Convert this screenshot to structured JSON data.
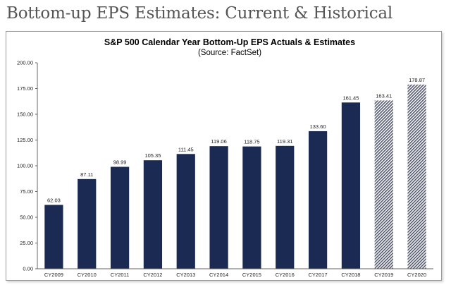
{
  "page": {
    "title": "Bottom-up EPS Estimates: Current & Historical"
  },
  "colors": {
    "actual_bar": "#1b2a52",
    "estimate_hatch_dark": "#555a6e",
    "estimate_hatch_light": "#ffffff",
    "axis": "#666666"
  },
  "chart_data": {
    "type": "bar",
    "title": "S&P 500 Calendar Year Bottom-Up EPS Actuals & Estimates",
    "subtitle": "(Source: FactSet)",
    "categories": [
      "CY2009",
      "CY2010",
      "CY2011",
      "CY2012",
      "CY2013",
      "CY2014",
      "CY2015",
      "CY2016",
      "CY2017",
      "CY2018",
      "CY2019",
      "CY2020"
    ],
    "values": [
      62.03,
      87.11,
      98.99,
      105.35,
      111.45,
      119.06,
      118.75,
      119.31,
      133.6,
      161.45,
      163.41,
      178.87
    ],
    "value_labels": [
      "62.03",
      "87.11",
      "98.99",
      "105.35",
      "111.45",
      "119.06",
      "118.75",
      "119.31",
      "133.60",
      "161.45",
      "163.41",
      "178.87"
    ],
    "bar_style": [
      "actual",
      "actual",
      "actual",
      "actual",
      "actual",
      "actual",
      "actual",
      "actual",
      "actual",
      "actual",
      "estimate",
      "estimate"
    ],
    "ylim": [
      0,
      200
    ],
    "yticks": [
      0,
      25,
      50,
      75,
      100,
      125,
      150,
      175,
      200
    ],
    "ytick_labels": [
      "0.00",
      "25.00",
      "50.00",
      "75.00",
      "100.00",
      "125.00",
      "150.00",
      "175.00",
      "200.00"
    ],
    "xlabel": "",
    "ylabel": "",
    "grid": false,
    "legend": "none"
  }
}
